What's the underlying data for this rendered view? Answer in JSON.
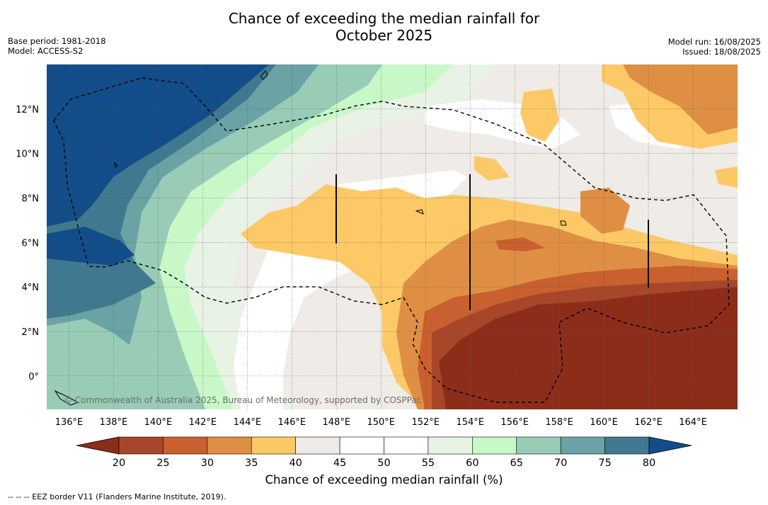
{
  "title": {
    "line1": "Chance of exceeding the median rainfall for",
    "line2": "October 2025"
  },
  "meta_left": {
    "base_period": "Base period: 1981-2018",
    "model": "Model: ACCESS-S2"
  },
  "meta_right": {
    "model_run": "Model run: 16/08/2025",
    "issued": "Issued: 18/08/2025"
  },
  "map": {
    "longitude_range": [
      135,
      166
    ],
    "latitude_range": [
      -1.5,
      14
    ],
    "x_ticks": [
      "136°E",
      "138°E",
      "140°E",
      "142°E",
      "144°E",
      "146°E",
      "148°E",
      "150°E",
      "152°E",
      "154°E",
      "156°E",
      "158°E",
      "160°E",
      "162°E",
      "164°E"
    ],
    "y_ticks": [
      "0°",
      "2°N",
      "4°N",
      "6°N",
      "8°N",
      "10°N",
      "12°N"
    ],
    "gridlines": true,
    "copyright": "© Commonwealth of Australia 2025, Bureau of Meteorology, supported by COSPPac"
  },
  "colorbar": {
    "label": "Chance of exceeding median rainfall (%)",
    "ticks": [
      "20",
      "25",
      "30",
      "35",
      "40",
      "45",
      "50",
      "55",
      "60",
      "65",
      "70",
      "75",
      "80"
    ],
    "colors": [
      "#8c2d1a",
      "#a8462a",
      "#c9602f",
      "#df8f43",
      "#fdc967",
      "#efebe6",
      "#ffffff",
      "#ffffff",
      "#e8f3e5",
      "#c8f8c8",
      "#98ccb6",
      "#6aa2a5",
      "#40798f",
      "#134d89"
    ]
  },
  "footer": "--  --  -- EEZ border V11 (Flanders Marine Institute, 2019)."
}
